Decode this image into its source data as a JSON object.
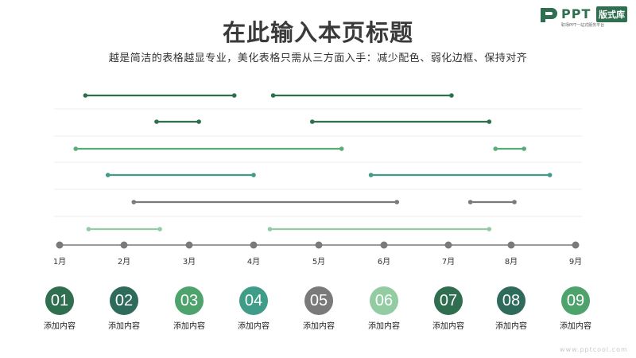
{
  "header": {
    "title": "在此输入本页标题",
    "subtitle": "越是简洁的表格越显专业，美化表格只需从三方面入手：减少配色、弱化边框、保持对齐"
  },
  "logo": {
    "name": "PPT",
    "badge": "版式库",
    "tagline": "职场PPT一站式服务平台",
    "brand_color": "#2f6e4f"
  },
  "chart_data": {
    "type": "timeline",
    "months": [
      "1月",
      "2月",
      "3月",
      "4月",
      "5月",
      "6月",
      "7月",
      "8月",
      "9月"
    ],
    "rows": [
      {
        "color": "#2f6e4f",
        "segments": [
          [
            1.4,
            3.7
          ],
          [
            4.3,
            7.05
          ]
        ]
      },
      {
        "color": "#2f6e4f",
        "segments": [
          [
            2.5,
            3.15
          ],
          [
            4.9,
            7.65
          ]
        ]
      },
      {
        "color": "#5aad78",
        "segments": [
          [
            1.25,
            5.35
          ],
          [
            7.75,
            8.2
          ]
        ]
      },
      {
        "color": "#3f9c88",
        "segments": [
          [
            1.75,
            4.0
          ],
          [
            5.8,
            8.6
          ]
        ]
      },
      {
        "color": "#7a7a7a",
        "segments": [
          [
            2.15,
            6.2
          ],
          [
            7.35,
            8.05
          ]
        ]
      },
      {
        "color": "#93cca3",
        "segments": [
          [
            1.45,
            2.55
          ],
          [
            4.25,
            7.65
          ]
        ]
      }
    ],
    "axis_color": "#7a7a7a",
    "grid": true
  },
  "items": [
    {
      "num": "01",
      "label": "添加内容",
      "color": "#2f6e4f"
    },
    {
      "num": "02",
      "label": "添加内容",
      "color": "#2e6b5b"
    },
    {
      "num": "03",
      "label": "添加内容",
      "color": "#4ea36c"
    },
    {
      "num": "04",
      "label": "添加内容",
      "color": "#3f9c88"
    },
    {
      "num": "05",
      "label": "添加内容",
      "color": "#7a7a7a"
    },
    {
      "num": "06",
      "label": "添加内容",
      "color": "#93cca3"
    },
    {
      "num": "07",
      "label": "添加内容",
      "color": "#2f6e4f"
    },
    {
      "num": "08",
      "label": "添加内容",
      "color": "#2e6b5b"
    },
    {
      "num": "09",
      "label": "添加内容",
      "color": "#4ea36c"
    }
  ],
  "watermark": "www.pptcool.com"
}
